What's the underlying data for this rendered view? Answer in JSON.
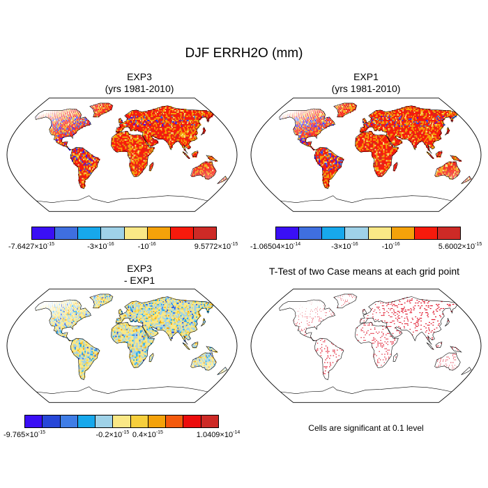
{
  "title": "DJF ERRH2O (mm)",
  "panels": [
    {
      "id": "exp3",
      "title_lines": [
        "EXP3",
        "(yrs 1981-2010)"
      ],
      "field": "full",
      "colorbar": {
        "colors": [
          "#3a0ff5",
          "#3f6fe0",
          "#17a8ec",
          "#9fd2e8",
          "#fae886",
          "#f4a20a",
          "#f71a0c",
          "#cd2a26"
        ],
        "labels": [
          {
            "text": "-7.6427×10",
            "exp": "-15",
            "pos": 0
          },
          {
            "text": "-3×10",
            "exp": "-16",
            "pos": 3
          },
          {
            "text": "-10",
            "exp": "-16",
            "pos": 5
          },
          {
            "text": "9.5772×10",
            "exp": "-15",
            "pos": 8
          }
        ]
      }
    },
    {
      "id": "exp1",
      "title_lines": [
        "EXP1",
        "(yrs 1981-2010)"
      ],
      "field": "full",
      "colorbar": {
        "colors": [
          "#3a0ff5",
          "#3f6fe0",
          "#17a8ec",
          "#9fd2e8",
          "#fae886",
          "#f4a20a",
          "#f71a0c",
          "#cd2a26"
        ],
        "labels": [
          {
            "text": "-1.06504×10",
            "exp": "-14",
            "pos": 0
          },
          {
            "text": "-3×10",
            "exp": "-16",
            "pos": 3
          },
          {
            "text": "-10",
            "exp": "-16",
            "pos": 5
          },
          {
            "text": "5.6002×10",
            "exp": "-15",
            "pos": 8
          }
        ]
      }
    },
    {
      "id": "diff",
      "title_lines": [
        "EXP3",
        "- EXP1"
      ],
      "field": "diff",
      "colorbar": {
        "colors": [
          "#3a0ff5",
          "#2747d8",
          "#3f7de6",
          "#17a8ec",
          "#9fd2e8",
          "#fae886",
          "#f7cf3c",
          "#f4a20a",
          "#f45a0d",
          "#ec0d0d",
          "#cd2a26"
        ],
        "labels": [
          {
            "text": "-9.765×10",
            "exp": "-15",
            "pos": 0
          },
          {
            "text": "-0.2×10",
            "exp": "-15",
            "pos": 5
          },
          {
            "text": "0.4×10",
            "exp": "-15",
            "pos": 7
          },
          {
            "text": "1.0409×10",
            "exp": "-14",
            "pos": 11
          }
        ]
      }
    },
    {
      "id": "ttest",
      "title_lines": [
        "T-Test of two Case means at each grid point"
      ],
      "field": "ttest",
      "note": "Cells are significant at 0.1 level"
    }
  ]
}
